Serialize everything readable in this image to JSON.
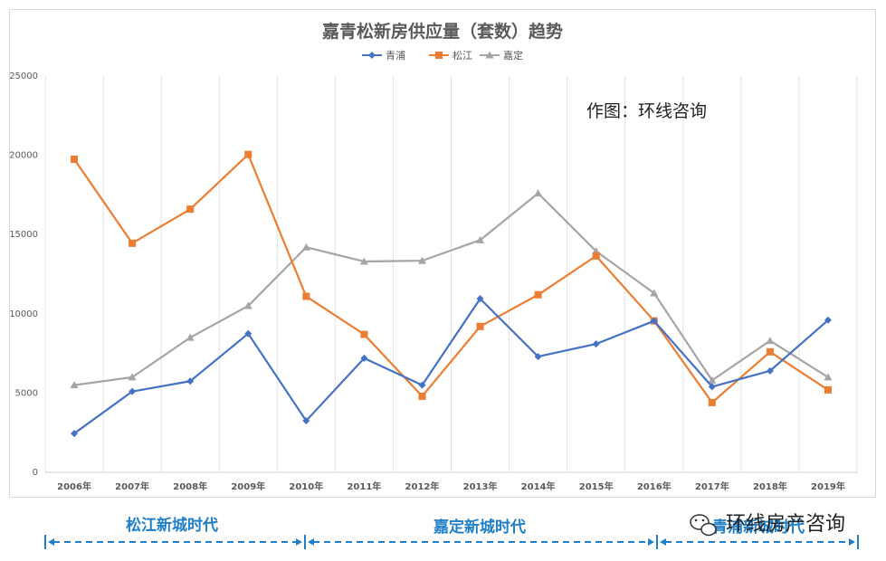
{
  "chart_data": {
    "type": "line",
    "title": "嘉青松新房供应量（套数）趋势",
    "categories": [
      "2006年",
      "2007年",
      "2008年",
      "2009年",
      "2010年",
      "2011年",
      "2012年",
      "2013年",
      "2014年",
      "2015年",
      "2016年",
      "2017年",
      "2018年",
      "2019年"
    ],
    "series": [
      {
        "name": "青浦",
        "color": "#4472c4",
        "marker": "diamond",
        "values": [
          2450,
          5100,
          5750,
          8750,
          3250,
          7200,
          5500,
          10950,
          7300,
          8100,
          9550,
          5400,
          6400,
          9600
        ]
      },
      {
        "name": "松江",
        "color": "#ed7d31",
        "marker": "square",
        "values": [
          19750,
          14450,
          16600,
          20050,
          11100,
          8700,
          4800,
          9200,
          11200,
          13650,
          9550,
          4400,
          7600,
          5200
        ]
      },
      {
        "name": "嘉定",
        "color": "#a5a5a5",
        "marker": "triangle",
        "values": [
          5500,
          6000,
          8500,
          10500,
          14200,
          13300,
          13350,
          14650,
          17600,
          13950,
          11300,
          5800,
          8300,
          6000
        ]
      }
    ],
    "yticks": [
      "0",
      "5000",
      "10000",
      "15000",
      "20000",
      "25000"
    ],
    "ylim": [
      0,
      25000
    ],
    "grid": "vertical",
    "legend": "top-center"
  },
  "annotation": "作图：环线咨询",
  "eras": [
    "松江新城时代",
    "嘉定新城时代",
    "青浦新城时代"
  ],
  "watermark": "环线房产咨询"
}
